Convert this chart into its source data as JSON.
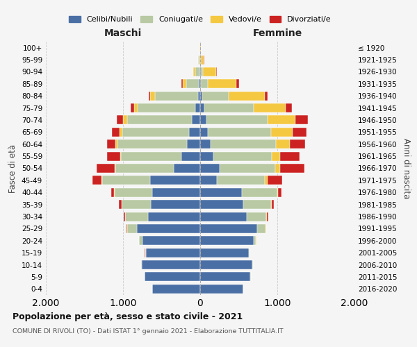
{
  "age_groups": [
    "0-4",
    "5-9",
    "10-14",
    "15-19",
    "20-24",
    "25-29",
    "30-34",
    "35-39",
    "40-44",
    "45-49",
    "50-54",
    "55-59",
    "60-64",
    "65-69",
    "70-74",
    "75-79",
    "80-84",
    "85-89",
    "90-94",
    "95-99",
    "100+"
  ],
  "birth_years": [
    "2016-2020",
    "2011-2015",
    "2006-2010",
    "2001-2005",
    "1996-2000",
    "1991-1995",
    "1986-1990",
    "1981-1985",
    "1976-1980",
    "1971-1975",
    "1966-1970",
    "1961-1965",
    "1956-1960",
    "1951-1955",
    "1946-1950",
    "1941-1945",
    "1936-1940",
    "1931-1935",
    "1926-1930",
    "1921-1925",
    "≤ 1920"
  ],
  "maschi": {
    "celibi": [
      620,
      720,
      760,
      700,
      750,
      820,
      680,
      640,
      620,
      650,
      340,
      240,
      175,
      140,
      110,
      60,
      30,
      20,
      10,
      5,
      2
    ],
    "coniugati": [
      3,
      5,
      8,
      15,
      40,
      130,
      290,
      380,
      490,
      620,
      760,
      790,
      900,
      870,
      840,
      750,
      560,
      160,
      50,
      15,
      2
    ],
    "vedovi": [
      0,
      0,
      0,
      0,
      1,
      2,
      2,
      2,
      3,
      5,
      8,
      10,
      20,
      35,
      50,
      45,
      55,
      45,
      30,
      7,
      1
    ],
    "divorziati": [
      0,
      0,
      0,
      2,
      5,
      10,
      18,
      28,
      38,
      120,
      230,
      170,
      115,
      100,
      80,
      50,
      25,
      15,
      4,
      2,
      0
    ]
  },
  "femmine": {
    "nubili": [
      560,
      650,
      680,
      630,
      690,
      740,
      600,
      560,
      540,
      220,
      250,
      170,
      135,
      100,
      80,
      50,
      25,
      12,
      8,
      3,
      1
    ],
    "coniugate": [
      3,
      4,
      7,
      12,
      35,
      110,
      260,
      360,
      460,
      620,
      720,
      760,
      850,
      820,
      790,
      640,
      340,
      90,
      25,
      8,
      2
    ],
    "vedove": [
      0,
      0,
      0,
      0,
      1,
      2,
      4,
      6,
      12,
      35,
      65,
      110,
      180,
      280,
      360,
      420,
      470,
      370,
      175,
      35,
      3
    ],
    "divorziate": [
      0,
      0,
      0,
      2,
      4,
      8,
      15,
      28,
      45,
      185,
      320,
      250,
      195,
      175,
      165,
      80,
      40,
      28,
      12,
      4,
      0
    ]
  },
  "colors": {
    "celibi": "#4a6fa5",
    "coniugati": "#b8c9a3",
    "vedovi": "#f5c842",
    "divorziati": "#cc2222"
  },
  "title": "Popolazione per età, sesso e stato civile - 2021",
  "subtitle": "COMUNE DI RIVOLI (TO) - Dati ISTAT 1° gennaio 2021 - Elaborazione TUTTITALIA.IT",
  "xlabel_maschi": "Maschi",
  "xlabel_femmine": "Femmine",
  "ylabel_left": "Fasce di età",
  "ylabel_right": "Anni di nascita",
  "xlim": 2000,
  "bg_color": "#f5f5f5",
  "bar_edge_color": "white"
}
